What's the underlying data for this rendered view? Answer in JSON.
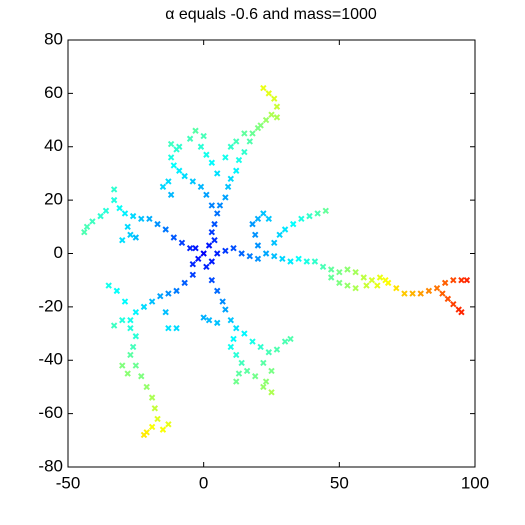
{
  "chart_data": {
    "type": "scatter",
    "title": "α equals -0.6 and mass=1000",
    "colormap": "jet",
    "marker": "x",
    "xlim": [
      -50,
      100
    ],
    "xticks": [
      -50,
      0,
      50,
      100
    ],
    "ylim": [
      -80,
      80
    ],
    "yticks": [
      -80,
      -60,
      -40,
      -20,
      0,
      20,
      40,
      60,
      80
    ],
    "x": [
      0,
      2,
      -2,
      3,
      -3,
      1,
      4,
      -4,
      3,
      4,
      5,
      6,
      8,
      9,
      10,
      12,
      13,
      15,
      17,
      18,
      21,
      23,
      25,
      27,
      26,
      24,
      22,
      27,
      20,
      3,
      1,
      -1,
      -4,
      -7,
      -9,
      -11,
      -12,
      -10,
      -12,
      -9,
      -13,
      -15,
      -12,
      5,
      3,
      1,
      -1,
      0,
      -3,
      -5,
      8,
      10,
      12,
      15,
      -5,
      -8,
      -11,
      -14,
      -17,
      -20,
      -23,
      -26,
      -29,
      -31,
      -33,
      -33,
      -36,
      -38,
      -41,
      -43,
      -44,
      -28,
      -27,
      -30,
      -25,
      -4,
      -7,
      -10,
      -13,
      -16,
      -19,
      -22,
      -25,
      -27,
      -27,
      -25,
      -26,
      -27,
      -25,
      -23,
      -21,
      -19,
      -18,
      -17,
      -19,
      -21,
      -22,
      -15,
      -13,
      -30,
      -33,
      -29,
      -32,
      -35,
      -14,
      -13,
      -10,
      -28,
      -30,
      3,
      5,
      7,
      8,
      10,
      12,
      11,
      10,
      12,
      14,
      16,
      19,
      22,
      5,
      2,
      0,
      15,
      18,
      21,
      24,
      27,
      30,
      32,
      13,
      12,
      22,
      25,
      23,
      25,
      5,
      8,
      11,
      14,
      17,
      20,
      23,
      26,
      29,
      32,
      35,
      38,
      41,
      44,
      47,
      50,
      53,
      56,
      59,
      62,
      65,
      68,
      71,
      74,
      77,
      80,
      83,
      86,
      88,
      90,
      92,
      94,
      95,
      89,
      92,
      95,
      97,
      20,
      19,
      18,
      20,
      22,
      24,
      26,
      28,
      30,
      33,
      36,
      39,
      42,
      45,
      47,
      50,
      53,
      56,
      60,
      64,
      67
    ],
    "y": [
      0,
      3,
      -2,
      -3,
      2,
      -5,
      5,
      -4,
      8,
      11,
      15,
      18,
      21,
      25,
      28,
      31,
      35,
      38,
      42,
      45,
      48,
      50,
      52,
      55,
      58,
      60,
      62,
      51,
      47,
      18,
      22,
      25,
      27,
      29,
      31,
      33,
      36,
      39,
      41,
      40,
      27,
      25,
      22,
      30,
      34,
      37,
      40,
      44,
      46,
      43,
      36,
      40,
      42,
      45,
      2,
      4,
      6,
      9,
      11,
      13,
      13,
      14,
      15,
      17,
      20,
      24,
      16,
      14,
      12,
      10,
      8,
      10,
      7,
      5,
      6,
      -8,
      -11,
      -14,
      -15,
      -16,
      -18,
      -20,
      -22,
      -25,
      -28,
      -31,
      -35,
      -38,
      -42,
      -46,
      -50,
      -54,
      -58,
      -62,
      -65,
      -67,
      -68,
      -66,
      -64,
      -25,
      -27,
      -18,
      -14,
      -12,
      -22,
      -28,
      -28,
      -45,
      -42,
      -10,
      -14,
      -18,
      -21,
      -25,
      -28,
      -32,
      -35,
      -38,
      -41,
      -44,
      -46,
      -50,
      -26,
      -25,
      -24,
      -30,
      -33,
      -35,
      -37,
      -36,
      -33,
      -32,
      -45,
      -48,
      -41,
      -44,
      -48,
      -52,
      0,
      1,
      2,
      0,
      -1,
      -2,
      0,
      -1,
      -2,
      -3,
      -2,
      -3,
      -3,
      -5,
      -6,
      -7,
      -6,
      -7,
      -9,
      -10,
      -9,
      -11,
      -13,
      -15,
      -15,
      -15,
      -14,
      -13,
      -15,
      -17,
      -19,
      -21,
      -22,
      -11,
      -10,
      -10,
      -10,
      3,
      7,
      11,
      13,
      15,
      13,
      4,
      7,
      9,
      11,
      13,
      14,
      15,
      16,
      -9,
      -11,
      -12,
      -13,
      -12,
      -12,
      -10
    ]
  }
}
